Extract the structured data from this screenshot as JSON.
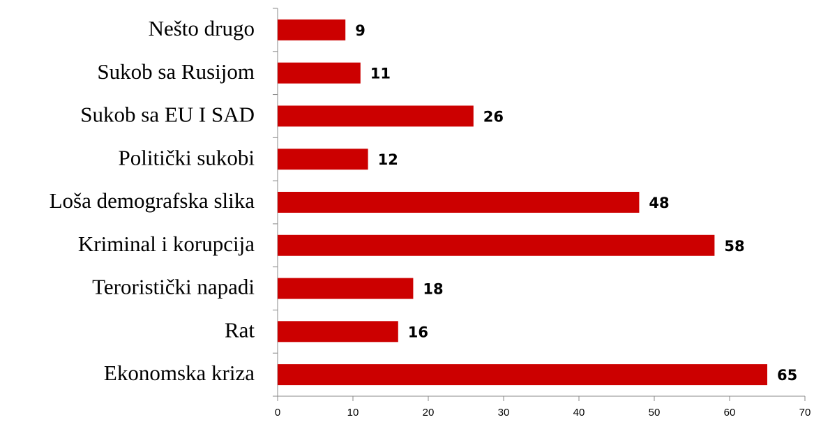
{
  "chart_data": {
    "type": "bar",
    "orientation": "horizontal",
    "categories": [
      "Nešto drugo",
      "Sukob sa Rusijom",
      "Sukob sa EU I SAD",
      "Politički sukobi",
      "Loša demografska slika",
      "Kriminal i korupcija",
      "Teroristički napadi",
      "Rat",
      "Ekonomska kriza"
    ],
    "values": [
      9,
      11,
      26,
      12,
      48,
      58,
      18,
      16,
      65
    ],
    "color": "#cc0000",
    "xlim": [
      0,
      70
    ],
    "xticks": [
      0,
      10,
      20,
      30,
      40,
      50,
      60,
      70
    ],
    "grid": false
  }
}
